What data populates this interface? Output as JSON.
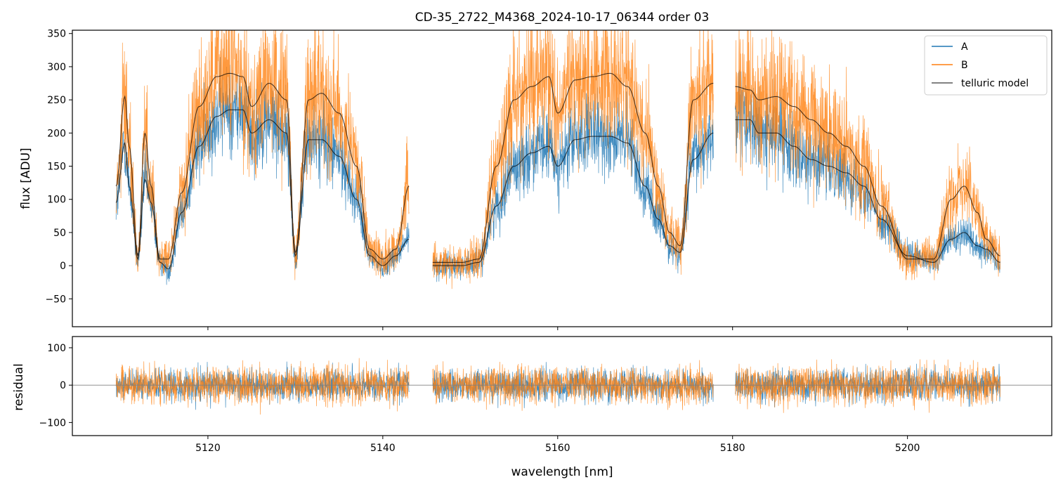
{
  "figure": {
    "title": "CD-35_2722_M4368_2024-10-17_06344  order 03",
    "xlabel": "wavelength [nm]"
  },
  "colors": {
    "A": "#1f77b4",
    "B": "#ff7f0e",
    "telluric_model": "#000000",
    "axes": "#000000",
    "zero_line": "#808080"
  },
  "chart_data": [
    {
      "id": "flux",
      "type": "line",
      "title": "CD-35_2722_M4368_2024-10-17_06344  order 03",
      "xlabel": "",
      "ylabel": "flux [ADU]",
      "xlim": [
        5104.5,
        5216.5
      ],
      "ylim": [
        -92,
        355
      ],
      "xticks": [
        5120,
        5140,
        5160,
        5180,
        5200
      ],
      "yticks": [
        -50,
        0,
        50,
        100,
        150,
        200,
        250,
        300,
        350
      ],
      "ytick_labels": [
        "−50",
        "0",
        "50",
        "100",
        "150",
        "200",
        "250",
        "300",
        "350"
      ],
      "legend": {
        "position": "top-right",
        "entries": [
          "A",
          "B",
          "telluric model"
        ]
      },
      "segments": [
        [
          5109.5,
          5143.0
        ],
        [
          5145.7,
          5177.8
        ],
        [
          5180.3,
          5210.6
        ]
      ],
      "series": [
        {
          "name": "A",
          "kind": "noisy-data",
          "noise_amplitude": 38,
          "x": [
            5109.5,
            5110.5,
            5111.0,
            5112.0,
            5112.8,
            5113.5,
            5114.5,
            5115.5,
            5117.0,
            5119.0,
            5121.0,
            5122.5,
            5124.0,
            5125.0,
            5127.0,
            5129.0,
            5130.0,
            5131.5,
            5133.0,
            5135.0,
            5137.0,
            5138.5,
            5140.0,
            5141.5,
            5143.0,
            5145.7,
            5149.0,
            5151.0,
            5153.0,
            5155.0,
            5157.0,
            5159.0,
            5160.0,
            5162.0,
            5164.0,
            5166.0,
            5168.0,
            5170.0,
            5171.5,
            5172.8,
            5174.0,
            5175.5,
            5177.8,
            5180.3,
            5182.0,
            5183.0,
            5185.0,
            5187.0,
            5189.0,
            5191.0,
            5193.0,
            5195.0,
            5197.0,
            5200.0,
            5203.0,
            5205.0,
            5206.5,
            5208.0,
            5209.0,
            5210.6
          ],
          "values": [
            95,
            185,
            120,
            10,
            130,
            95,
            5,
            -5,
            80,
            180,
            225,
            235,
            235,
            200,
            220,
            200,
            15,
            190,
            190,
            165,
            100,
            15,
            0,
            15,
            40,
            0,
            0,
            5,
            90,
            150,
            170,
            180,
            150,
            190,
            195,
            195,
            185,
            120,
            70,
            30,
            20,
            160,
            200,
            220,
            220,
            200,
            200,
            180,
            160,
            150,
            140,
            120,
            70,
            15,
            5,
            40,
            50,
            30,
            25,
            5
          ]
        },
        {
          "name": "B",
          "kind": "noisy-data",
          "noise_amplitude": 55,
          "x": [
            5109.5,
            5110.5,
            5111.0,
            5112.0,
            5112.8,
            5113.5,
            5114.5,
            5115.5,
            5117.0,
            5119.0,
            5121.0,
            5122.5,
            5124.0,
            5125.0,
            5127.0,
            5129.0,
            5130.0,
            5131.5,
            5133.0,
            5135.0,
            5137.0,
            5138.5,
            5140.0,
            5141.5,
            5143.0,
            5145.7,
            5149.0,
            5151.0,
            5153.0,
            5155.0,
            5157.0,
            5159.0,
            5160.0,
            5162.0,
            5164.0,
            5166.0,
            5168.0,
            5170.0,
            5171.5,
            5172.8,
            5174.0,
            5175.5,
            5177.8,
            5180.3,
            5182.0,
            5183.0,
            5185.0,
            5187.0,
            5189.0,
            5191.0,
            5193.0,
            5195.0,
            5197.0,
            5200.0,
            5203.0,
            5205.0,
            5206.5,
            5208.0,
            5209.0,
            5210.6
          ],
          "values": [
            120,
            255,
            180,
            15,
            200,
            120,
            10,
            10,
            110,
            240,
            285,
            290,
            285,
            240,
            275,
            250,
            20,
            250,
            260,
            230,
            150,
            25,
            10,
            25,
            120,
            5,
            5,
            10,
            150,
            250,
            270,
            285,
            230,
            280,
            285,
            290,
            270,
            200,
            120,
            50,
            30,
            250,
            275,
            270,
            265,
            250,
            255,
            240,
            220,
            200,
            180,
            150,
            90,
            10,
            10,
            100,
            120,
            80,
            40,
            15
          ]
        },
        {
          "name": "telluric model",
          "kind": "model",
          "x": [
            5109.5,
            5110.5,
            5111.0,
            5112.0,
            5112.8,
            5113.5,
            5114.5,
            5115.5,
            5117.0,
            5119.0,
            5121.0,
            5122.5,
            5124.0,
            5125.0,
            5127.0,
            5129.0,
            5130.0,
            5131.5,
            5133.0,
            5135.0,
            5137.0,
            5138.5,
            5140.0,
            5141.5,
            5143.0,
            5145.7,
            5149.0,
            5151.0,
            5153.0,
            5155.0,
            5157.0,
            5159.0,
            5160.0,
            5162.0,
            5164.0,
            5166.0,
            5168.0,
            5170.0,
            5171.5,
            5172.8,
            5174.0,
            5175.5,
            5177.8,
            5180.3,
            5182.0,
            5183.0,
            5185.0,
            5187.0,
            5189.0,
            5191.0,
            5193.0,
            5195.0,
            5197.0,
            5200.0,
            5203.0,
            5205.0,
            5206.5,
            5208.0,
            5209.0,
            5210.6
          ],
          "values_A": [
            95,
            185,
            120,
            10,
            130,
            95,
            5,
            -5,
            80,
            180,
            225,
            235,
            235,
            200,
            220,
            200,
            15,
            190,
            190,
            165,
            100,
            15,
            0,
            15,
            40,
            0,
            0,
            5,
            90,
            150,
            170,
            180,
            150,
            190,
            195,
            195,
            185,
            120,
            70,
            30,
            20,
            160,
            200,
            220,
            220,
            200,
            200,
            180,
            160,
            150,
            140,
            120,
            70,
            15,
            5,
            40,
            50,
            30,
            25,
            5
          ],
          "values_B": [
            120,
            255,
            180,
            15,
            200,
            120,
            10,
            10,
            110,
            240,
            285,
            290,
            285,
            240,
            275,
            250,
            20,
            250,
            260,
            230,
            150,
            25,
            10,
            25,
            120,
            5,
            5,
            10,
            150,
            250,
            270,
            285,
            230,
            280,
            285,
            290,
            270,
            200,
            120,
            50,
            30,
            250,
            275,
            270,
            265,
            250,
            255,
            240,
            220,
            200,
            180,
            150,
            90,
            10,
            10,
            100,
            120,
            80,
            40,
            15
          ]
        }
      ]
    },
    {
      "id": "residual",
      "type": "line",
      "xlabel": "wavelength [nm]",
      "ylabel": "residual",
      "xlim": [
        5104.5,
        5216.5
      ],
      "ylim": [
        -135,
        130
      ],
      "xticks": [
        5120,
        5140,
        5160,
        5180,
        5200
      ],
      "xtick_labels": [
        "5120",
        "5140",
        "5160",
        "5180",
        "5200"
      ],
      "yticks": [
        -100,
        0,
        100
      ],
      "ytick_labels": [
        "−100",
        "0",
        "100"
      ],
      "zero_line": 0,
      "series": [
        {
          "name": "A",
          "kind": "noisy-residual",
          "noise_amplitude": 40
        },
        {
          "name": "B",
          "kind": "noisy-residual",
          "noise_amplitude": 48
        }
      ]
    }
  ]
}
